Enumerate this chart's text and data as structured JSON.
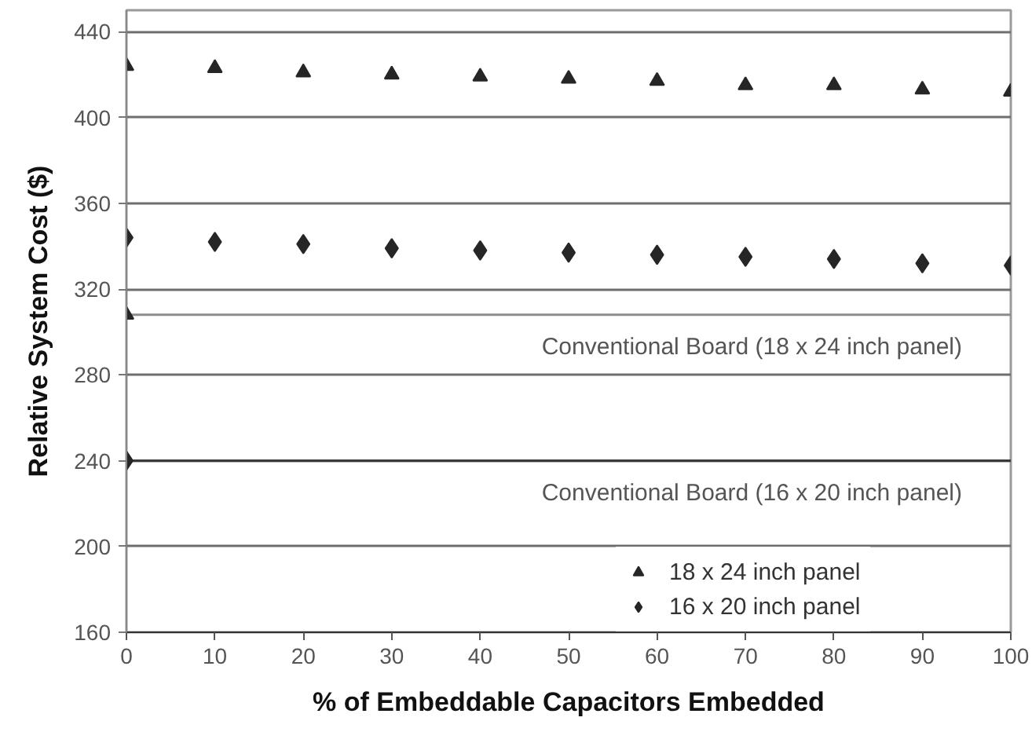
{
  "chart_data": {
    "type": "scatter",
    "xlabel": "% of Embeddable Capacitors Embedded",
    "ylabel": "Relative System Cost ($)",
    "x": [
      0,
      10,
      20,
      30,
      40,
      50,
      60,
      70,
      80,
      90,
      100
    ],
    "xlim": [
      0,
      100
    ],
    "xticks": [
      0,
      10,
      20,
      30,
      40,
      50,
      60,
      70,
      80,
      90,
      100
    ],
    "ylim": [
      160,
      450
    ],
    "yticks": [
      160,
      200,
      240,
      280,
      320,
      360,
      400,
      440
    ],
    "grid": "y",
    "legend": "bottom right",
    "series": [
      {
        "name": "18 x 24 inch panel",
        "color": "#262626",
        "marker": "triangle",
        "values": [
          424,
          423,
          421,
          420,
          419,
          418,
          417,
          415,
          415,
          413,
          412
        ]
      },
      {
        "name": "16 x 20 inch panel",
        "color": "#262626",
        "marker": "diamond",
        "values": [
          344,
          342,
          341,
          339,
          338,
          337,
          336,
          335,
          334,
          332,
          331
        ]
      },
      {
        "color": "#262626",
        "marker": "triangle",
        "x": [
          0
        ],
        "values": [
          308
        ]
      },
      {
        "color": "#262626",
        "marker": "diamond",
        "x": [
          0
        ],
        "values": [
          240
        ]
      }
    ],
    "ref_lines": [
      {
        "axis": "y",
        "value": 308,
        "label": "Conventional Board (18 x 24 inch panel)",
        "color": "#8c8c8c"
      },
      {
        "axis": "y",
        "value": 240,
        "label": "Conventional Board (16 x 20 inch panel)",
        "color": "#3a3a3a"
      }
    ]
  }
}
